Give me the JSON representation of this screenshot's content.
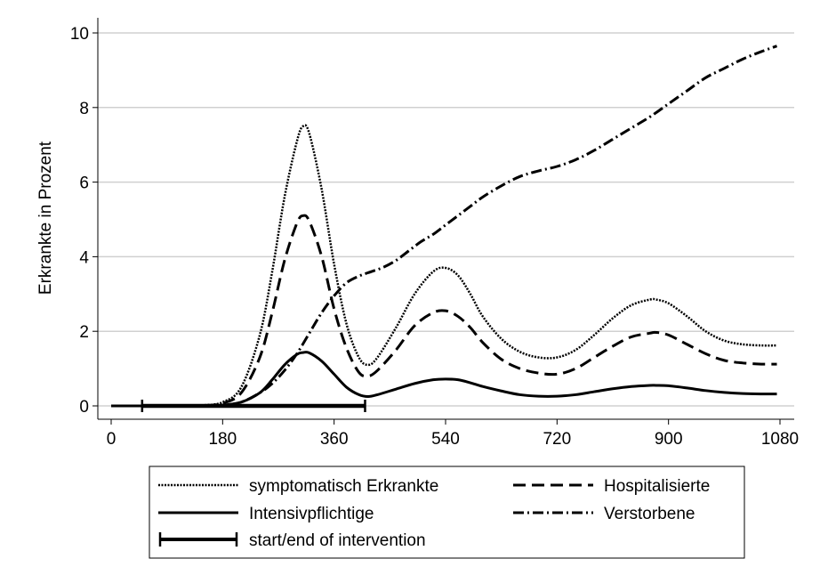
{
  "chart_data": {
    "type": "line",
    "title": "",
    "xlabel": "",
    "ylabel": "Erkrankte in Prozent",
    "xlim": [
      0,
      1080
    ],
    "ylim": [
      0,
      10
    ],
    "xticks": [
      "0",
      "180",
      "360",
      "540",
      "720",
      "900",
      "1080"
    ],
    "yticks": [
      "0",
      "2",
      "4",
      "6",
      "8",
      "10"
    ],
    "grid": "horizontal",
    "legend_position": "bottom",
    "series": [
      {
        "name": "symptomatisch Erkrankte",
        "style": "dotted",
        "x": [
          0,
          60,
          120,
          150,
          180,
          210,
          240,
          260,
          280,
          300,
          310,
          320,
          340,
          360,
          380,
          400,
          415,
          430,
          460,
          490,
          520,
          540,
          560,
          580,
          600,
          630,
          660,
          690,
          720,
          750,
          780,
          810,
          840,
          870,
          880,
          900,
          930,
          960,
          990,
          1020,
          1050,
          1075
        ],
        "y": [
          0,
          0,
          0,
          0.02,
          0.1,
          0.5,
          1.9,
          3.6,
          5.6,
          7.1,
          7.5,
          7.3,
          5.8,
          3.8,
          2.2,
          1.3,
          1.1,
          1.3,
          2.1,
          3.0,
          3.6,
          3.7,
          3.5,
          3.0,
          2.4,
          1.8,
          1.45,
          1.3,
          1.3,
          1.5,
          1.9,
          2.35,
          2.7,
          2.85,
          2.85,
          2.75,
          2.4,
          2.0,
          1.75,
          1.65,
          1.62,
          1.62
        ]
      },
      {
        "name": "Hospitalisierte",
        "style": "dashed",
        "x": [
          0,
          60,
          120,
          150,
          180,
          210,
          240,
          260,
          280,
          300,
          310,
          320,
          340,
          360,
          380,
          400,
          415,
          430,
          460,
          490,
          520,
          540,
          560,
          580,
          600,
          630,
          660,
          690,
          720,
          750,
          780,
          810,
          840,
          870,
          880,
          900,
          930,
          960,
          990,
          1020,
          1050,
          1075
        ],
        "y": [
          0,
          0,
          0,
          0.01,
          0.07,
          0.35,
          1.3,
          2.5,
          3.9,
          4.9,
          5.1,
          4.95,
          4.0,
          2.6,
          1.55,
          0.9,
          0.8,
          0.95,
          1.5,
          2.15,
          2.5,
          2.55,
          2.4,
          2.1,
          1.7,
          1.25,
          1.0,
          0.88,
          0.85,
          1.0,
          1.3,
          1.6,
          1.85,
          1.95,
          1.97,
          1.9,
          1.65,
          1.4,
          1.22,
          1.15,
          1.12,
          1.12
        ]
      },
      {
        "name": "Intensivpflichtige",
        "style": "solid",
        "x": [
          0,
          60,
          120,
          150,
          180,
          210,
          240,
          260,
          280,
          300,
          310,
          320,
          340,
          360,
          380,
          400,
          415,
          430,
          460,
          490,
          520,
          540,
          560,
          580,
          600,
          630,
          660,
          690,
          720,
          750,
          780,
          810,
          840,
          870,
          880,
          900,
          930,
          960,
          990,
          1020,
          1050,
          1075
        ],
        "y": [
          0,
          0,
          0,
          0,
          0.02,
          0.1,
          0.35,
          0.7,
          1.1,
          1.38,
          1.43,
          1.42,
          1.2,
          0.85,
          0.5,
          0.3,
          0.25,
          0.3,
          0.45,
          0.6,
          0.7,
          0.72,
          0.7,
          0.62,
          0.52,
          0.4,
          0.3,
          0.26,
          0.26,
          0.3,
          0.38,
          0.46,
          0.52,
          0.55,
          0.55,
          0.54,
          0.48,
          0.41,
          0.36,
          0.33,
          0.32,
          0.32
        ]
      },
      {
        "name": "Verstorbene",
        "style": "dash-dot",
        "x": [
          0,
          60,
          120,
          150,
          180,
          210,
          240,
          260,
          280,
          300,
          320,
          340,
          360,
          380,
          400,
          420,
          440,
          460,
          480,
          500,
          520,
          540,
          560,
          580,
          600,
          630,
          660,
          690,
          720,
          750,
          780,
          810,
          840,
          870,
          900,
          930,
          960,
          990,
          1020,
          1050,
          1075
        ],
        "y": [
          0,
          0,
          0,
          0,
          0.02,
          0.1,
          0.35,
          0.6,
          0.95,
          1.4,
          1.95,
          2.5,
          2.95,
          3.3,
          3.48,
          3.6,
          3.72,
          3.9,
          4.15,
          4.4,
          4.6,
          4.85,
          5.1,
          5.35,
          5.6,
          5.9,
          6.15,
          6.3,
          6.42,
          6.6,
          6.85,
          7.15,
          7.45,
          7.75,
          8.1,
          8.45,
          8.8,
          9.05,
          9.3,
          9.5,
          9.65
        ]
      }
    ],
    "intervention": {
      "name": "start/end of intervention",
      "start": 50,
      "end": 410,
      "y": 0
    }
  }
}
